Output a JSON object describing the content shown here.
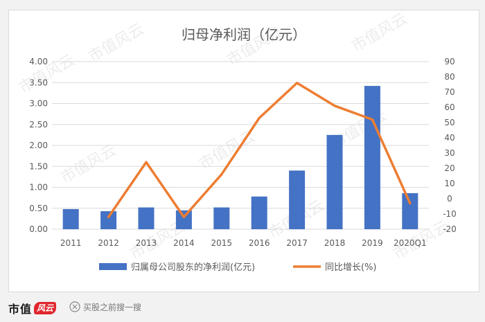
{
  "chart_data": {
    "type": "bar+line",
    "title": "归母净利润（亿元）",
    "categories": [
      "2011",
      "2012",
      "2013",
      "2014",
      "2015",
      "2016",
      "2017",
      "2018",
      "2019",
      "2020Q1"
    ],
    "series": [
      {
        "name": "归属母公司股东的净利润(亿元)",
        "type": "bar",
        "axis": "left",
        "color": "#4472c4",
        "values": [
          0.48,
          0.43,
          0.52,
          0.45,
          0.52,
          0.78,
          1.4,
          2.25,
          3.42,
          0.86
        ]
      },
      {
        "name": "同比增长(%)",
        "type": "line",
        "axis": "right",
        "color": "#ed7d31",
        "values": [
          null,
          -12,
          24,
          -12,
          16,
          53,
          76,
          61,
          52,
          -3
        ]
      }
    ],
    "y_left": {
      "ylim": [
        0,
        4
      ],
      "ticks": [
        "0.00",
        "0.50",
        "1.00",
        "1.50",
        "2.00",
        "2.50",
        "3.00",
        "3.50",
        "4.00"
      ]
    },
    "y_right": {
      "ylim": [
        -20,
        90
      ],
      "ticks": [
        "-20",
        "-10",
        "0",
        "10",
        "20",
        "30",
        "40",
        "50",
        "60",
        "70",
        "80",
        "90"
      ]
    },
    "grid": true,
    "legend_position": "bottom"
  },
  "watermark": "市值风云",
  "footer": {
    "brand": "市值",
    "brand_stamp": "风云",
    "search_text": "买股之前搜一搜"
  }
}
